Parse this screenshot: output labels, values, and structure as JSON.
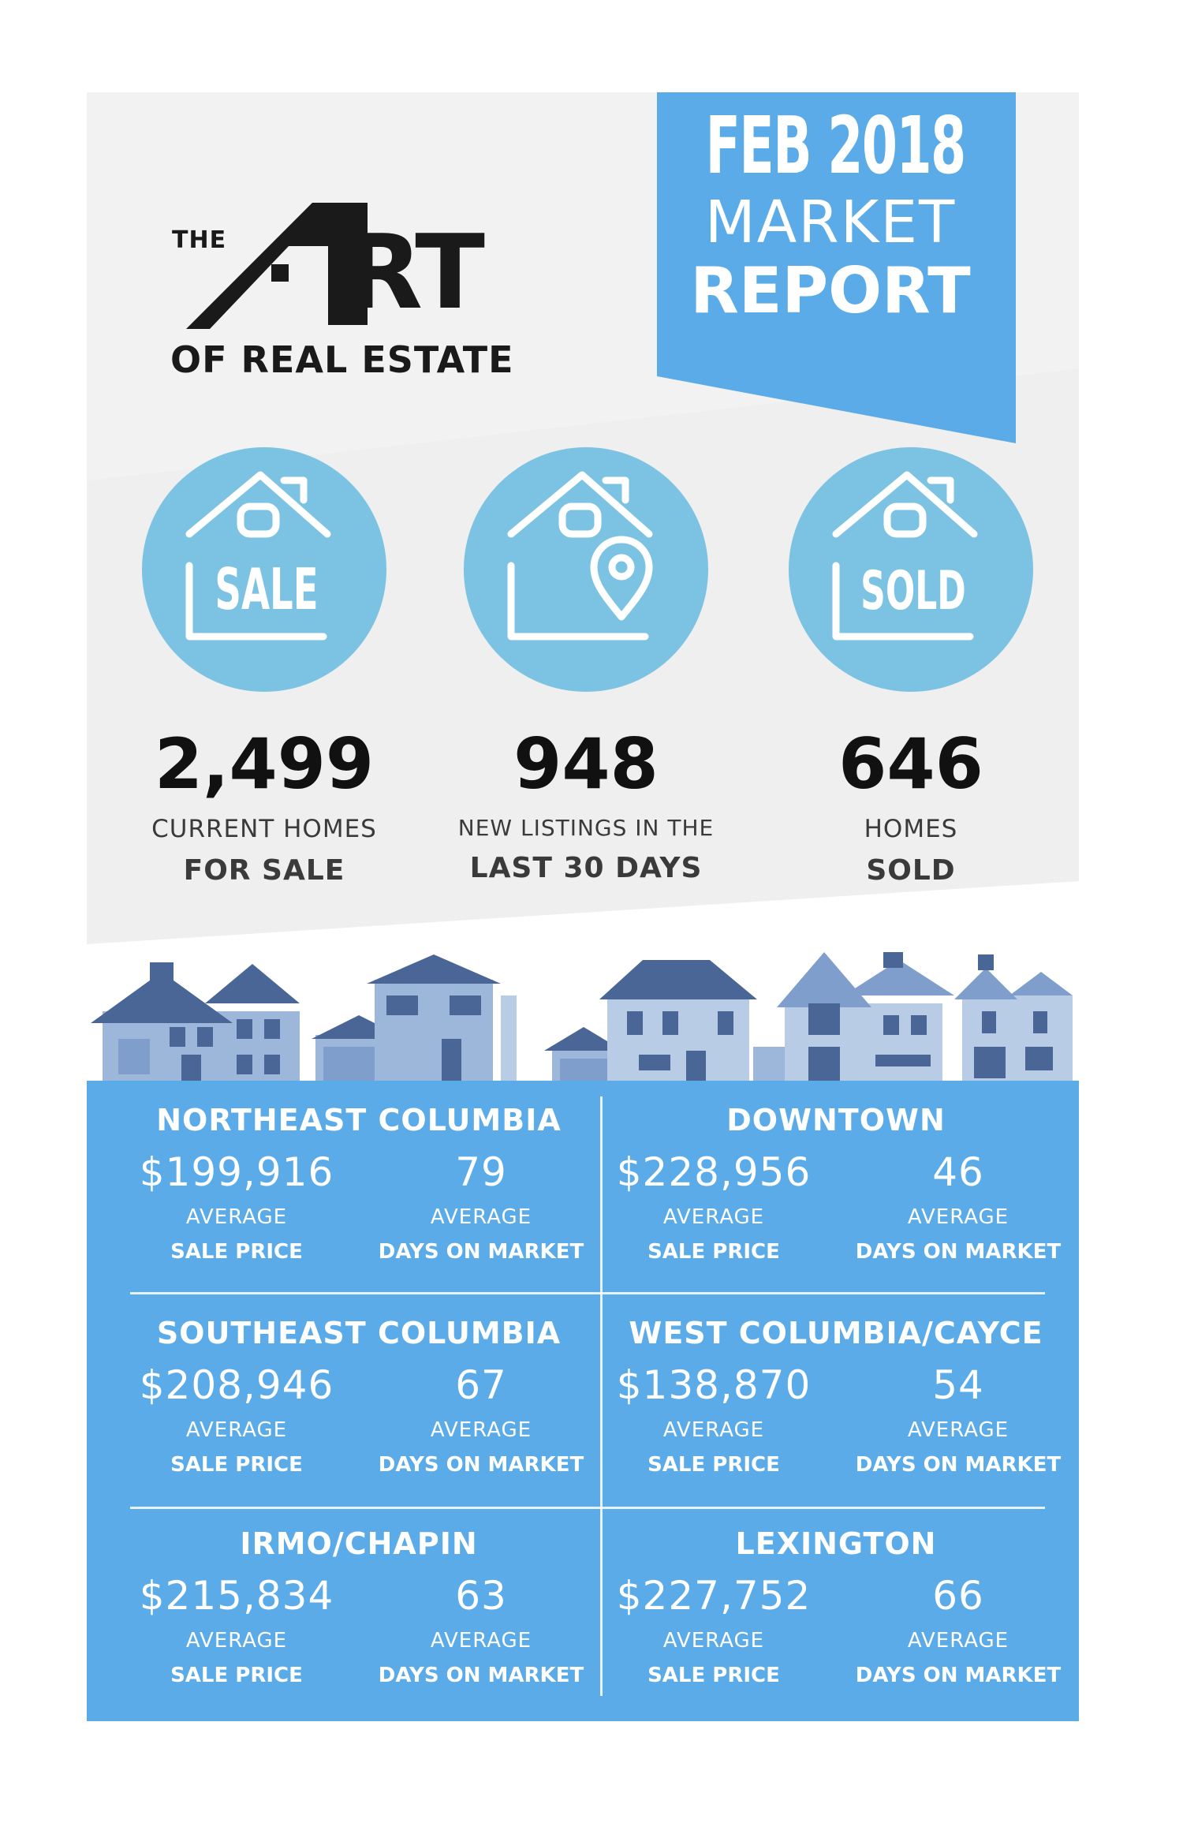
{
  "logo": {
    "the": "THE",
    "art_tail": "RT",
    "subtitle": "OF REAL ESTATE"
  },
  "banner": {
    "line1": "FEB 2018",
    "line2": "MARKET",
    "line3": "REPORT"
  },
  "stats": [
    {
      "icon": "house-sale-icon",
      "icon_text": "SALE",
      "value": "2,499",
      "label_line1": "CURRENT HOMES",
      "label_line2": "FOR SALE"
    },
    {
      "icon": "house-location-pin-icon",
      "icon_text": "",
      "value": "948",
      "label_line1": "NEW LISTINGS IN THE",
      "label_line2": "LAST 30 DAYS"
    },
    {
      "icon": "house-sold-icon",
      "icon_text": "SOLD",
      "value": "646",
      "label_line1": "HOMES",
      "label_line2": "SOLD"
    }
  ],
  "regions": [
    {
      "name": "NORTHEAST COLUMBIA",
      "price": "$199,916",
      "days": "79",
      "price_label1": "AVERAGE",
      "price_label2": "SALE PRICE",
      "days_label1": "AVERAGE",
      "days_label2": "DAYS ON MARKET"
    },
    {
      "name": "DOWNTOWN",
      "price": "$228,956",
      "days": "46",
      "price_label1": "AVERAGE",
      "price_label2": "SALE PRICE",
      "days_label1": "AVERAGE",
      "days_label2": "DAYS ON MARKET"
    },
    {
      "name": "SOUTHEAST COLUMBIA",
      "price": "$208,946",
      "days": "67",
      "price_label1": "AVERAGE",
      "price_label2": "SALE PRICE",
      "days_label1": "AVERAGE",
      "days_label2": "DAYS ON MARKET"
    },
    {
      "name": "WEST COLUMBIA/CAYCE",
      "price": "$138,870",
      "days": "54",
      "price_label1": "AVERAGE",
      "price_label2": "SALE PRICE",
      "days_label1": "AVERAGE",
      "days_label2": "DAYS ON MARKET"
    },
    {
      "name": "IRMO/CHAPIN",
      "price": "$215,834",
      "days": "63",
      "price_label1": "AVERAGE",
      "price_label2": "SALE PRICE",
      "days_label1": "AVERAGE",
      "days_label2": "DAYS ON MARKET"
    },
    {
      "name": "LEXINGTON",
      "price": "$227,752",
      "days": "66",
      "price_label1": "AVERAGE",
      "price_label2": "SALE PRICE",
      "days_label1": "AVERAGE",
      "days_label2": "DAYS ON MARKET"
    }
  ],
  "colors": {
    "panel_blue": "#5aabe8",
    "circle_blue": "#7cc3e3",
    "banner_blue": "#5aabe8",
    "background_grey": "#f2f2f2",
    "house_blue": "#7f9ecb",
    "house_dark": "#4a6697"
  }
}
